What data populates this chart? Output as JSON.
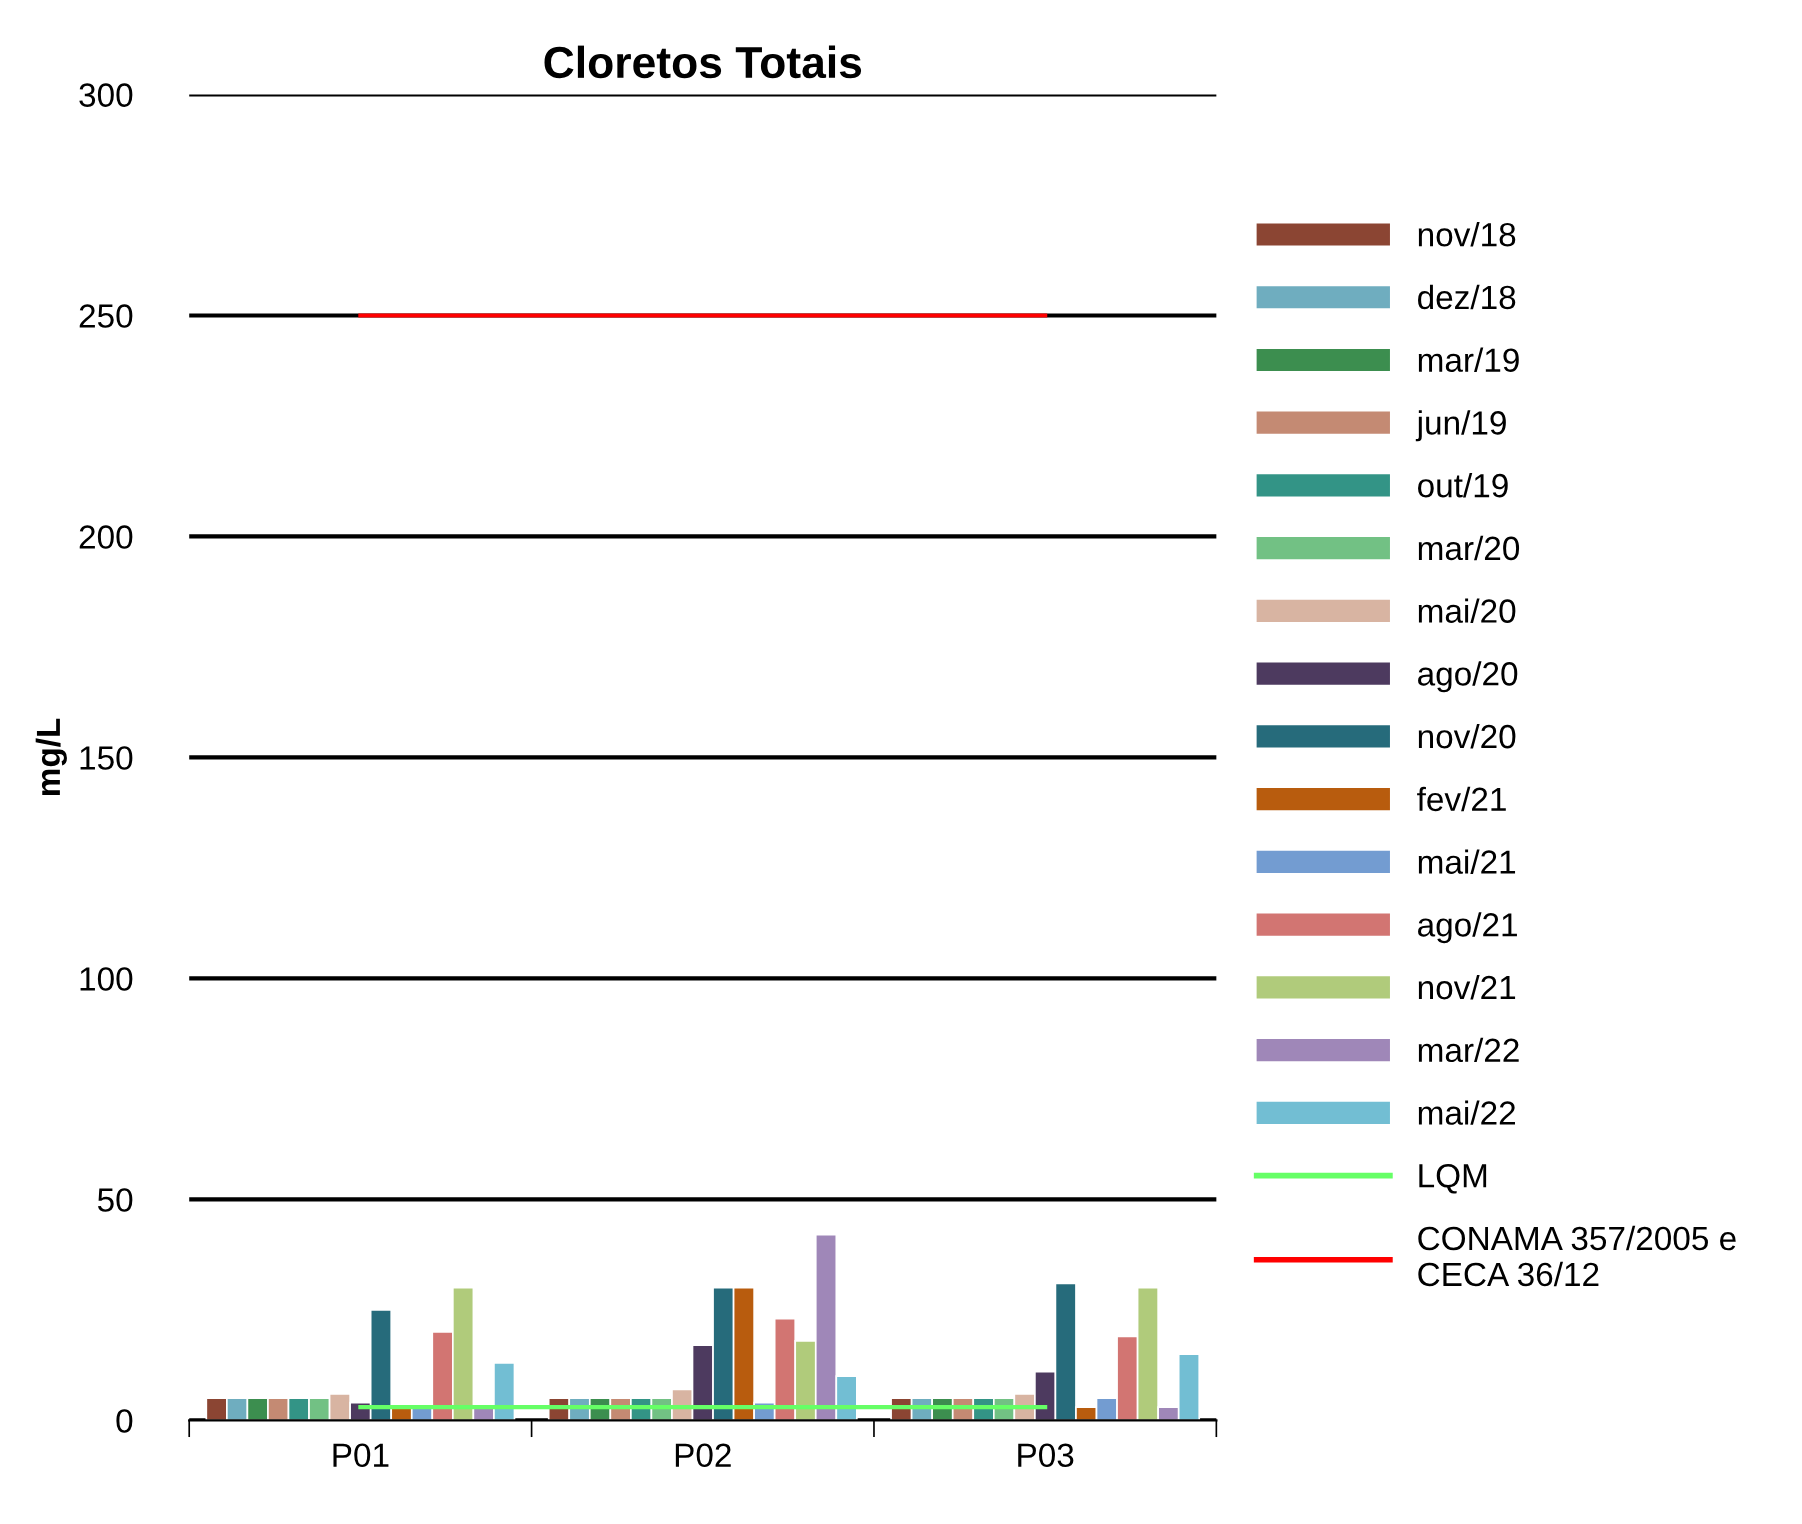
{
  "chart_data": {
    "type": "bar",
    "title": "Cloretos Totais",
    "ylabel": "mg/L",
    "categories": [
      "P01",
      "P02",
      "P03"
    ],
    "ylim": [
      0,
      300
    ],
    "yticks": [
      0,
      50,
      100,
      150,
      200,
      250,
      300
    ],
    "grid": "y",
    "legend": "right",
    "series": [
      {
        "name": "nov/18",
        "color": "#8b4533",
        "values": [
          5,
          5,
          5
        ]
      },
      {
        "name": "dez/18",
        "color": "#6fadbf",
        "values": [
          5,
          5,
          5
        ]
      },
      {
        "name": "mar/19",
        "color": "#3c8e4f",
        "values": [
          5,
          5,
          5
        ]
      },
      {
        "name": "jun/19",
        "color": "#c48a73",
        "values": [
          5,
          5,
          5
        ]
      },
      {
        "name": "out/19",
        "color": "#339486",
        "values": [
          5,
          5,
          5
        ]
      },
      {
        "name": "mar/20",
        "color": "#72c184",
        "values": [
          5,
          5,
          5
        ]
      },
      {
        "name": "mai/20",
        "color": "#d8b4a2",
        "values": [
          6,
          7,
          6
        ]
      },
      {
        "name": "ago/20",
        "color": "#4d3a5f",
        "values": [
          4,
          17,
          11
        ]
      },
      {
        "name": "nov/20",
        "color": "#266b7b",
        "values": [
          25,
          30,
          31
        ]
      },
      {
        "name": "fev/21",
        "color": "#b85c0e",
        "values": [
          3,
          30,
          3
        ]
      },
      {
        "name": "mai/21",
        "color": "#739cd1",
        "values": [
          3,
          4,
          5
        ]
      },
      {
        "name": "ago/21",
        "color": "#d27572",
        "values": [
          20,
          23,
          19
        ]
      },
      {
        "name": "nov/21",
        "color": "#b0cb7b",
        "values": [
          30,
          18,
          30
        ]
      },
      {
        "name": "mar/22",
        "color": "#9f87b8",
        "values": [
          3,
          42,
          3
        ]
      },
      {
        "name": "mai/22",
        "color": "#72bed3",
        "values": [
          13,
          10,
          15
        ]
      },
      {
        "name": "LQM",
        "type": "line",
        "color": "#66ff66",
        "values": [
          3,
          3,
          3
        ]
      },
      {
        "name": "CONAMA 357/2005 e\nCECA 36/12",
        "type": "line",
        "color": "#ff0000",
        "values": [
          250,
          250,
          250
        ]
      }
    ]
  }
}
